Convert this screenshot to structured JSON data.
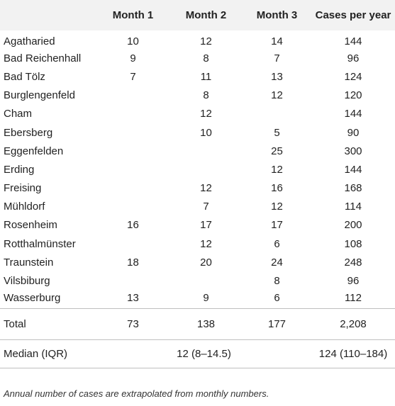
{
  "table": {
    "headers": [
      "",
      "Month 1",
      "Month 2",
      "Month 3",
      "Cases per year"
    ],
    "rows": [
      [
        "Agatharied",
        "10",
        "12",
        "14",
        "144"
      ],
      [
        "Bad Reichenhall",
        "9",
        "8",
        "7",
        "96"
      ],
      [
        "Bad Tölz",
        "7",
        "11",
        "13",
        "124"
      ],
      [
        "Burglengenfeld",
        "",
        "8",
        "12",
        "120"
      ],
      [
        "Cham",
        "",
        "12",
        "",
        "144"
      ],
      [
        "Ebersberg",
        "",
        "10",
        "5",
        "90"
      ],
      [
        "Eggenfelden",
        "",
        "",
        "25",
        "300"
      ],
      [
        "Erding",
        "",
        "",
        "12",
        "144"
      ],
      [
        "Freising",
        "",
        "12",
        "16",
        "168"
      ],
      [
        "Mühldorf",
        "",
        "7",
        "12",
        "114"
      ],
      [
        "Rosenheim",
        "16",
        "17",
        "17",
        "200"
      ],
      [
        "Rotthalmünster",
        "",
        "12",
        "6",
        "108"
      ],
      [
        "Traunstein",
        "18",
        "20",
        "24",
        "248"
      ],
      [
        "Vilsbiburg",
        "",
        "",
        "8",
        "96"
      ],
      [
        "Wasserburg",
        "13",
        "9",
        "6",
        "112"
      ]
    ],
    "total": [
      "Total",
      "73",
      "138",
      "177",
      "2,208"
    ],
    "median": {
      "label": "Median (IQR)",
      "months_value": "12 (8–14.5)",
      "year_value": "124 (110–184)"
    }
  },
  "footnote": "Annual number of cases are extrapolated from monthly numbers."
}
